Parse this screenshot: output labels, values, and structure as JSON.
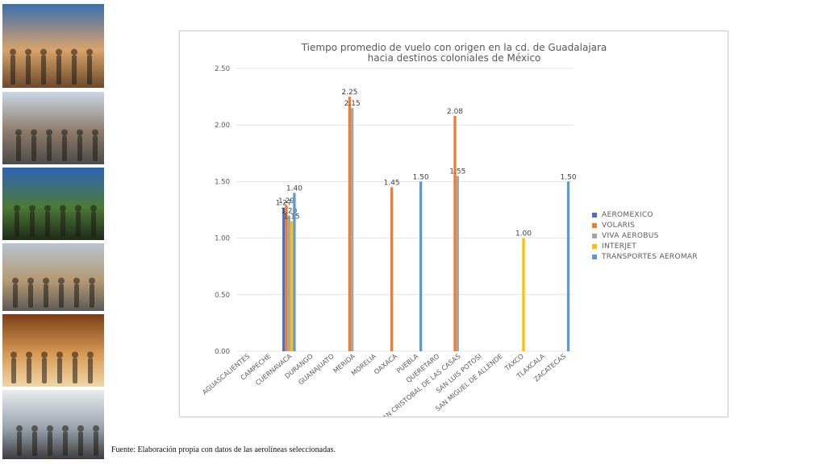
{
  "source_note": "Fuente: Elaboración propia con datos de las aerolíneas seleccionadas.",
  "photos": [
    {
      "name": "photo-couple-rooftop",
      "colors": [
        "#3a6fb0",
        "#d9a36a",
        "#6b4a2c"
      ]
    },
    {
      "name": "photo-street-crowd",
      "colors": [
        "#c9d6e6",
        "#8d7b6a",
        "#4d4b49"
      ]
    },
    {
      "name": "photo-garden-terrace",
      "colors": [
        "#2c64b5",
        "#4d7a36",
        "#1d2a18"
      ]
    },
    {
      "name": "photo-church-plaza",
      "colors": [
        "#b7c3d0",
        "#b69a74",
        "#5e5a55"
      ]
    },
    {
      "name": "photo-hotel-room",
      "colors": [
        "#7a3f18",
        "#d89a55",
        "#f0d6a8"
      ]
    },
    {
      "name": "photo-shopping-crowd",
      "colors": [
        "#e9ecef",
        "#9aa3ad",
        "#3b3d40"
      ]
    }
  ],
  "chart_data": {
    "type": "bar",
    "title": "Tiempo promedio de vuelo con origen en la cd. de Guadalajara hacia destinos coloniales de México",
    "categories": [
      "AGUASCALIENTES",
      "CAMPECHE",
      "CUERNAVACA",
      "DURANGO",
      "GUANAJUATO",
      "MERIDA",
      "MORELIA",
      "OAXACA",
      "PUEBLA",
      "QUERETARO",
      "SAN CRISTOBAL DE LAS CASAS",
      "SAN LUIS POTOSI",
      "SAN MIGUEL DE ALLENDE",
      "TAXCO",
      "TLAXCALA",
      "ZACATECAS"
    ],
    "series": [
      {
        "name": "AEROMEXICO",
        "color": "#4472c4",
        "values": [
          null,
          null,
          1.27,
          null,
          null,
          null,
          null,
          null,
          null,
          null,
          null,
          null,
          null,
          null,
          null,
          null
        ]
      },
      {
        "name": "VOLARIS",
        "color": "#ed7d31",
        "values": [
          null,
          null,
          1.29,
          null,
          null,
          2.25,
          null,
          1.45,
          null,
          null,
          2.08,
          null,
          null,
          null,
          null,
          null
        ]
      },
      {
        "name": "VIVA AEROBUS",
        "color": "#a5a5a5",
        "values": [
          null,
          null,
          1.2,
          null,
          null,
          2.15,
          null,
          null,
          null,
          null,
          1.55,
          null,
          null,
          null,
          null,
          null
        ]
      },
      {
        "name": "INTERJET",
        "color": "#ffc000",
        "values": [
          null,
          null,
          1.15,
          null,
          null,
          null,
          null,
          null,
          null,
          null,
          null,
          null,
          null,
          1.0,
          null,
          null
        ]
      },
      {
        "name": "TRANSPORTES AEROMAR",
        "color": "#5b9bd5",
        "values": [
          null,
          null,
          1.4,
          null,
          null,
          null,
          null,
          null,
          1.5,
          null,
          null,
          null,
          null,
          null,
          null,
          1.5
        ]
      }
    ],
    "ylim": [
      0,
      2.5
    ],
    "yticks": [
      "0.00",
      "0.50",
      "1.00",
      "1.50",
      "2.00",
      "2.50"
    ],
    "grid": true,
    "legend_position": "right"
  }
}
